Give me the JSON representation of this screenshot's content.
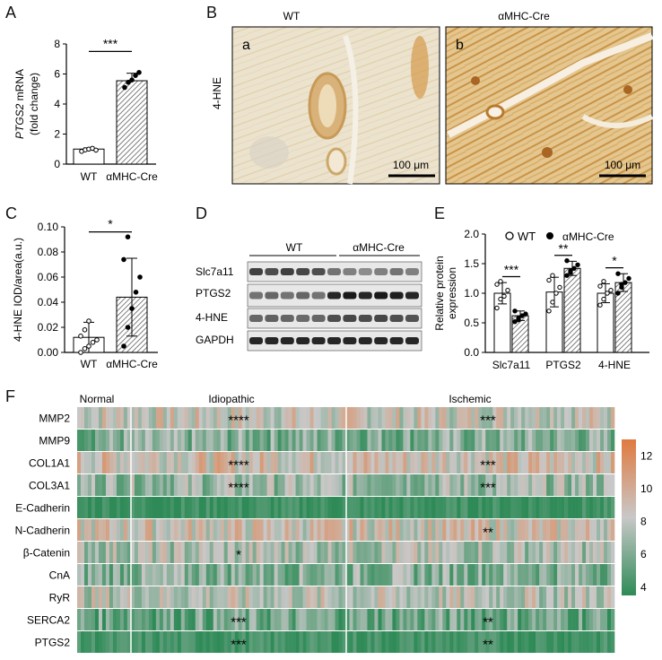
{
  "panel_letters": {
    "A": "A",
    "B": "B",
    "C": "C",
    "D": "D",
    "E": "E",
    "F": "F"
  },
  "colors": {
    "axis": "#000000",
    "hatch": "#555555",
    "green": "#2e8b57",
    "grey": "#c8c8c8",
    "orange": "#e07a3f",
    "tissue": "#e9dcc2",
    "stain": "#c08a3c"
  },
  "panel_b": {
    "cols": [
      "WT",
      "αMHC-Cre"
    ],
    "row_label": "4-HNE",
    "sub_labels": [
      "a",
      "b"
    ],
    "scale_bar": "100 μm"
  },
  "panel_d": {
    "groups": [
      "WT",
      "αMHC-Cre"
    ],
    "bands": [
      "Slc7a11",
      "PTGS2",
      "4-HNE",
      "GAPDH"
    ]
  },
  "chart_data": [
    {
      "id": "A",
      "type": "bar",
      "ylabel_italic": "PTGS2",
      "ylabel_rest": " mRNA",
      "ylabel2": "(fold change)",
      "categories": [
        "WT",
        "αMHC-Cre"
      ],
      "values": [
        1.0,
        5.55
      ],
      "errors": [
        0.08,
        0.5
      ],
      "points": [
        [
          0.85,
          0.95,
          1.0,
          1.05,
          0.93
        ],
        [
          5.1,
          5.45,
          5.6,
          5.9,
          6.1
        ]
      ],
      "ylim": [
        0,
        8
      ],
      "yticks": [
        "0",
        "2",
        "4",
        "6",
        "8"
      ],
      "yticks_val": [
        0,
        2,
        4,
        6,
        8
      ],
      "significance": "***"
    },
    {
      "id": "C",
      "type": "bar",
      "ylabel": "4-HNE IOD/area(a.u.)",
      "categories": [
        "WT",
        "αMHC-Cre"
      ],
      "values": [
        0.012,
        0.044
      ],
      "errors": [
        0.012,
        0.031
      ],
      "points": [
        [
          0.0,
          0.003,
          0.005,
          0.008,
          0.01,
          0.013,
          0.018,
          0.025
        ],
        [
          0.005,
          0.02,
          0.035,
          0.048,
          0.06,
          0.074,
          0.092
        ]
      ],
      "ylim": [
        0,
        0.1
      ],
      "yticks": [
        "0.00",
        "0.02",
        "0.04",
        "0.06",
        "0.08",
        "0.10"
      ],
      "yticks_val": [
        0,
        0.02,
        0.04,
        0.06,
        0.08,
        0.1
      ],
      "significance": "*"
    },
    {
      "id": "E",
      "type": "bar",
      "ylabel": "Relative protein",
      "ylabel2": "expression",
      "legend": [
        "WT",
        "αMHC-Cre"
      ],
      "categories": [
        "Slc7a11",
        "PTGS2",
        "4-HNE"
      ],
      "series": [
        {
          "name": "WT",
          "values": [
            1.0,
            1.02,
            1.0
          ],
          "errors": [
            0.18,
            0.25,
            0.16
          ],
          "points": [
            [
              0.75,
              0.9,
              0.95,
              1.05,
              1.15,
              1.2
            ],
            [
              0.7,
              0.85,
              1.0,
              1.1,
              1.22,
              1.3
            ],
            [
              0.8,
              0.9,
              1.0,
              1.05,
              1.12,
              1.2
            ]
          ]
        },
        {
          "name": "αMHC-Cre",
          "values": [
            0.62,
            1.42,
            1.18
          ],
          "errors": [
            0.08,
            0.12,
            0.15
          ],
          "points": [
            [
              0.52,
              0.58,
              0.62,
              0.65,
              0.7,
              0.55
            ],
            [
              1.3,
              1.38,
              1.42,
              1.48,
              1.55,
              1.35
            ],
            [
              1.0,
              1.1,
              1.18,
              1.25,
              1.33,
              1.15
            ]
          ]
        }
      ],
      "ylim": [
        0,
        2.0
      ],
      "yticks": [
        "0.0",
        "0.5",
        "1.0",
        "1.5",
        "2.0"
      ],
      "yticks_val": [
        0,
        0.5,
        1.0,
        1.5,
        2.0
      ],
      "significance": [
        "***",
        "**",
        "*"
      ]
    },
    {
      "id": "F",
      "type": "heatmap",
      "groups": [
        "Normal",
        "Idiopathic",
        "Ischemic"
      ],
      "rows": [
        "MMP2",
        "MMP9",
        "COL1A1",
        "COL3A1",
        "E-Cadherin",
        "N-Cadherin",
        "β-Catenin",
        "CnA",
        "RyR",
        "SERCA2",
        "PTGS2"
      ],
      "row_means": [
        8.4,
        6.1,
        9.0,
        6.9,
        4.0,
        8.7,
        7.4,
        6.3,
        7.8,
        5.6,
        4.2
      ],
      "significance_idiopathic": [
        "****",
        "",
        "****",
        "****",
        "",
        "",
        "*",
        "",
        "",
        "***",
        "***"
      ],
      "significance_ischemic": [
        "***",
        "",
        "***",
        "***",
        "",
        "**",
        "",
        "",
        "",
        "**",
        "**"
      ],
      "colorbar_ticks": [
        "4",
        "6",
        "8",
        "10",
        "12"
      ],
      "colorbar_vals": [
        4,
        6,
        8,
        10,
        12
      ],
      "crange": [
        3.5,
        13
      ]
    }
  ]
}
